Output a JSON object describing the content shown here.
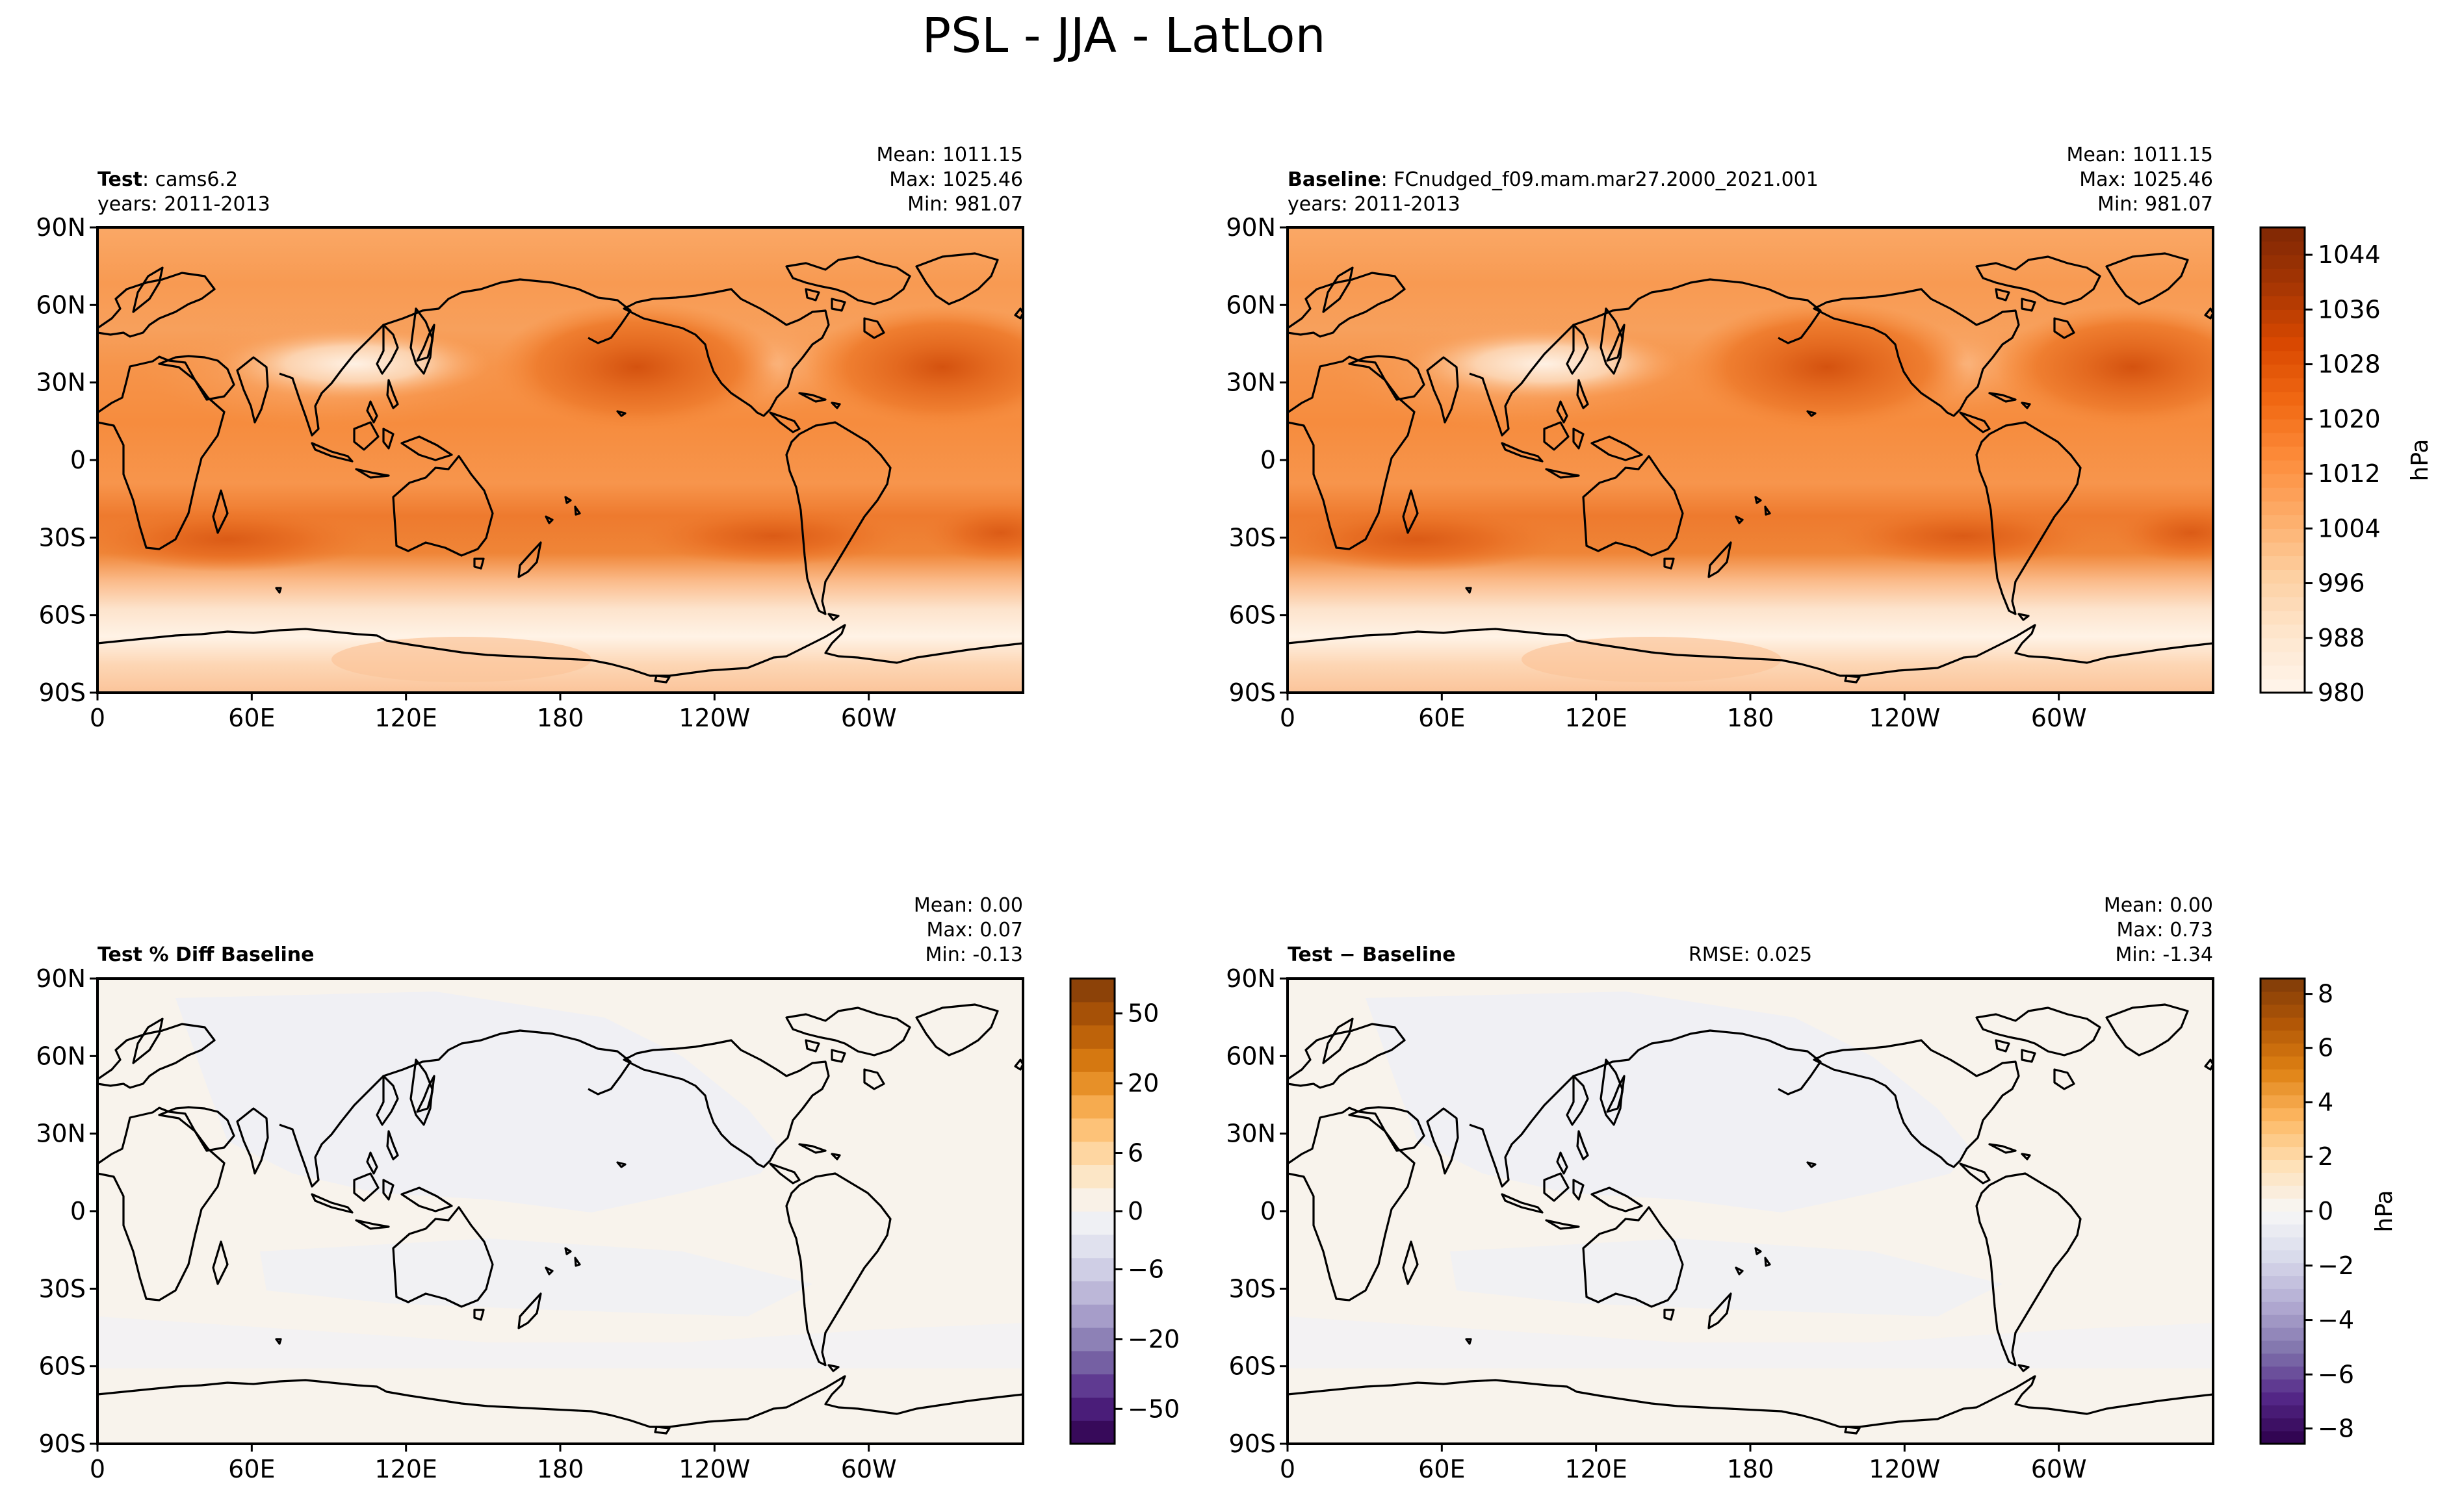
{
  "figure_title": "PSL - JJA - LatLon",
  "panels": [
    {
      "id": "test",
      "title_bold": "Test",
      "title_rest": ": cams6.2",
      "subtitle": "years: 2011-2013",
      "rmse": "",
      "stats": [
        "Mean: 1011.15",
        "Max: 1025.46",
        "Min: 981.07"
      ],
      "field": "psl"
    },
    {
      "id": "baseline",
      "title_bold": "Baseline",
      "title_rest": ": FCnudged_f09.mam.mar27.2000_2021.001",
      "subtitle": "years: 2011-2013",
      "rmse": "",
      "stats": [
        "Mean: 1011.15",
        "Max: 1025.46",
        "Min: 981.07"
      ],
      "field": "psl"
    },
    {
      "id": "pctdiff",
      "title_bold": "Test % Diff Baseline",
      "title_rest": "",
      "subtitle": "",
      "rmse": "",
      "stats": [
        "Mean:  0.00",
        "Max:  0.07",
        "Min: -0.13"
      ],
      "field": "diff"
    },
    {
      "id": "diff",
      "title_bold": "Test − Baseline",
      "title_rest": "",
      "subtitle": "",
      "rmse": "RMSE: 0.025",
      "stats": [
        "Mean:  0.00",
        "Max:  0.73",
        "Min: -1.34"
      ],
      "field": "diff"
    }
  ],
  "axes": {
    "lat_ticks": [
      "90N",
      "60N",
      "30N",
      "0",
      "30S",
      "60S",
      "90S"
    ],
    "lon_ticks": [
      "0",
      "60E",
      "120E",
      "180",
      "120W",
      "60W"
    ]
  },
  "colorbars": [
    {
      "id": "psl",
      "label": "hPa",
      "vmin": 980,
      "vmax": 1048,
      "ticks": [
        "1044",
        "1036",
        "1028",
        "1020",
        "1012",
        "1004",
        "996",
        "988",
        "980"
      ],
      "colormap": "Oranges",
      "colors": [
        "#fff5eb",
        "#fee6ce",
        "#fdd0a2",
        "#fdae6b",
        "#fd8d3c",
        "#f16913",
        "#d94801",
        "#a63603",
        "#7f2704"
      ]
    },
    {
      "id": "pct",
      "label": "",
      "ticks": [
        "50",
        "20",
        "6",
        "0",
        "−6",
        "−20",
        "−50"
      ],
      "colormap": "PuOr_r",
      "colors": [
        "#2d004b",
        "#542788",
        "#8073ac",
        "#b2abd2",
        "#d8daeb",
        "#f7f7f7",
        "#fee0b6",
        "#fdb863",
        "#e08214",
        "#b35806",
        "#7f3b08"
      ]
    },
    {
      "id": "abs",
      "label": "hPa",
      "ticks": [
        "8",
        "6",
        "4",
        "2",
        "0",
        "−2",
        "−4",
        "−6",
        "−8"
      ],
      "colormap": "PuOr_r",
      "colors": [
        "#2d004b",
        "#542788",
        "#8073ac",
        "#b2abd2",
        "#d8daeb",
        "#f7f7f7",
        "#fee0b6",
        "#fdb863",
        "#e08214",
        "#b35806",
        "#7f3b08"
      ]
    }
  ],
  "map_colors": {
    "diff_background": "#f8f3ec",
    "diff_negative_patch": "#f0f0f4",
    "coastline": "#000000"
  }
}
